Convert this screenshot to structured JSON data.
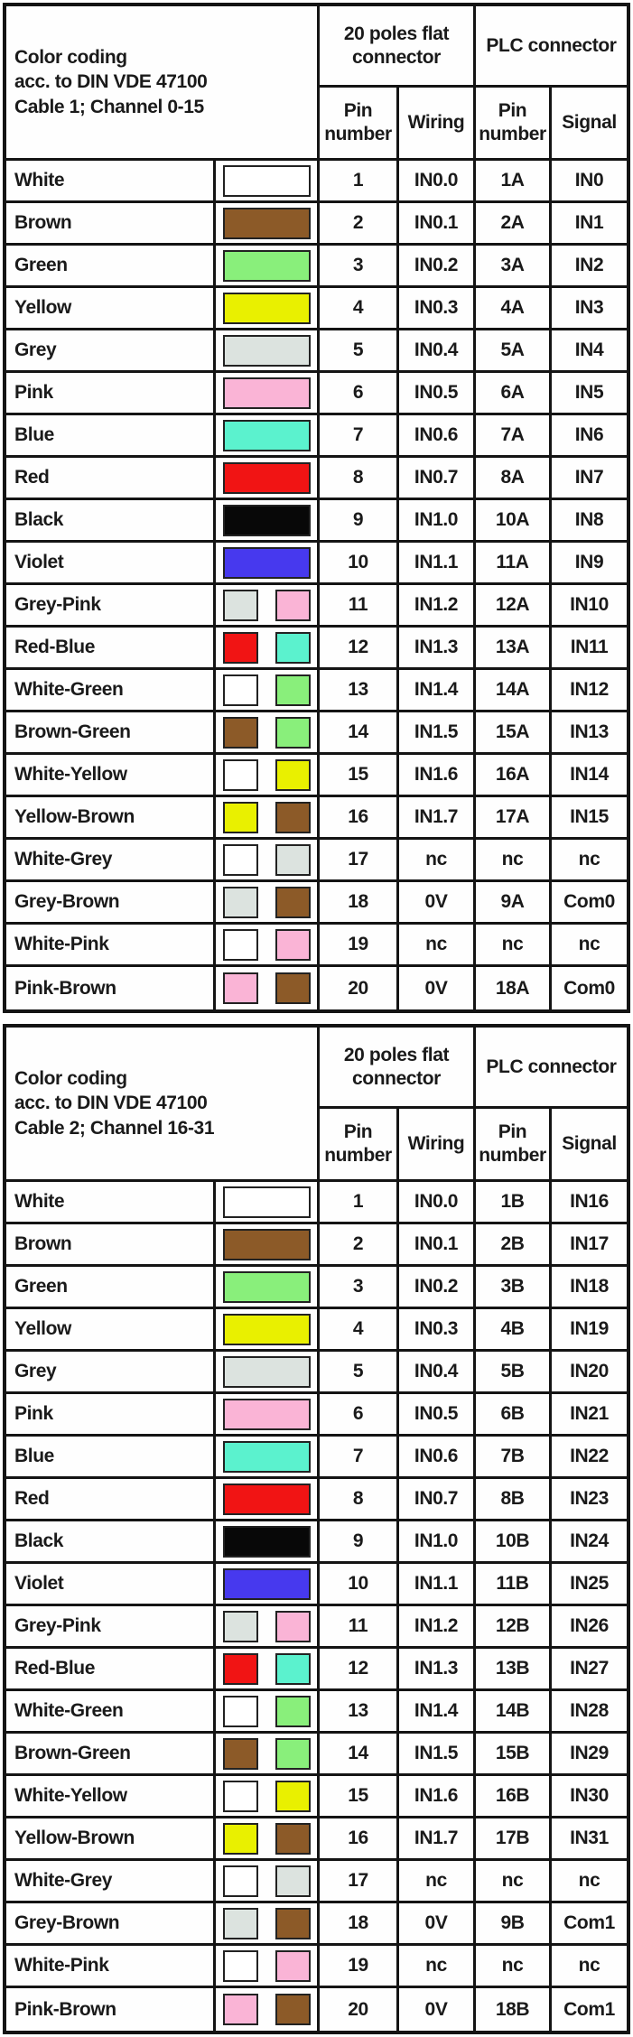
{
  "page": {
    "background": "#ffffff",
    "line_color": "#141414",
    "text_color": "#1a1a1a"
  },
  "color_map": {
    "white": "#FFFFFF",
    "brown": "#8C5A28",
    "green": "#89EF7B",
    "yellow": "#E9F000",
    "grey": "#DCE3DF",
    "pink": "#FAB4D6",
    "blue": "#5BF2CE",
    "red": "#F11414",
    "black": "#080808",
    "violet": "#4739EE"
  },
  "tables": [
    {
      "title_lines": [
        "Color coding",
        "acc. to DIN VDE 47100",
        "Cable 1; Channel 0-15"
      ],
      "groups": {
        "flat": "20 poles flat connector",
        "plc": "PLC connector"
      },
      "columns": {
        "pin": "Pin number",
        "wiring": "Wiring",
        "plc_pin": "Pin number",
        "signal": "Signal"
      },
      "rows": [
        {
          "color": "White",
          "swatches": [
            "white"
          ],
          "pin": "1",
          "wiring": "IN0.0",
          "plc_pin": "1A",
          "signal": "IN0"
        },
        {
          "color": "Brown",
          "swatches": [
            "brown"
          ],
          "pin": "2",
          "wiring": "IN0.1",
          "plc_pin": "2A",
          "signal": "IN1"
        },
        {
          "color": "Green",
          "swatches": [
            "green"
          ],
          "pin": "3",
          "wiring": "IN0.2",
          "plc_pin": "3A",
          "signal": "IN2"
        },
        {
          "color": "Yellow",
          "swatches": [
            "yellow"
          ],
          "pin": "4",
          "wiring": "IN0.3",
          "plc_pin": "4A",
          "signal": "IN3"
        },
        {
          "color": "Grey",
          "swatches": [
            "grey"
          ],
          "pin": "5",
          "wiring": "IN0.4",
          "plc_pin": "5A",
          "signal": "IN4"
        },
        {
          "color": "Pink",
          "swatches": [
            "pink"
          ],
          "pin": "6",
          "wiring": "IN0.5",
          "plc_pin": "6A",
          "signal": "IN5"
        },
        {
          "color": "Blue",
          "swatches": [
            "blue"
          ],
          "pin": "7",
          "wiring": "IN0.6",
          "plc_pin": "7A",
          "signal": "IN6"
        },
        {
          "color": "Red",
          "swatches": [
            "red"
          ],
          "pin": "8",
          "wiring": "IN0.7",
          "plc_pin": "8A",
          "signal": "IN7"
        },
        {
          "color": "Black",
          "swatches": [
            "black"
          ],
          "pin": "9",
          "wiring": "IN1.0",
          "plc_pin": "10A",
          "signal": "IN8"
        },
        {
          "color": "Violet",
          "swatches": [
            "violet"
          ],
          "pin": "10",
          "wiring": "IN1.1",
          "plc_pin": "11A",
          "signal": "IN9"
        },
        {
          "color": "Grey-Pink",
          "swatches": [
            "grey",
            "pink"
          ],
          "pin": "11",
          "wiring": "IN1.2",
          "plc_pin": "12A",
          "signal": "IN10"
        },
        {
          "color": "Red-Blue",
          "swatches": [
            "red",
            "blue"
          ],
          "pin": "12",
          "wiring": "IN1.3",
          "plc_pin": "13A",
          "signal": "IN11"
        },
        {
          "color": "White-Green",
          "swatches": [
            "white",
            "green"
          ],
          "pin": "13",
          "wiring": "IN1.4",
          "plc_pin": "14A",
          "signal": "IN12"
        },
        {
          "color": "Brown-Green",
          "swatches": [
            "brown",
            "green"
          ],
          "pin": "14",
          "wiring": "IN1.5",
          "plc_pin": "15A",
          "signal": "IN13"
        },
        {
          "color": "White-Yellow",
          "swatches": [
            "white",
            "yellow"
          ],
          "pin": "15",
          "wiring": "IN1.6",
          "plc_pin": "16A",
          "signal": "IN14"
        },
        {
          "color": "Yellow-Brown",
          "swatches": [
            "yellow",
            "brown"
          ],
          "pin": "16",
          "wiring": "IN1.7",
          "plc_pin": "17A",
          "signal": "IN15"
        },
        {
          "color": "White-Grey",
          "swatches": [
            "white",
            "grey"
          ],
          "pin": "17",
          "wiring": "nc",
          "plc_pin": "nc",
          "signal": "nc"
        },
        {
          "color": "Grey-Brown",
          "swatches": [
            "grey",
            "brown"
          ],
          "pin": "18",
          "wiring": "0V",
          "plc_pin": "9A",
          "signal": "Com0"
        },
        {
          "color": "White-Pink",
          "swatches": [
            "white",
            "pink"
          ],
          "pin": "19",
          "wiring": "nc",
          "plc_pin": "nc",
          "signal": "nc"
        },
        {
          "color": "Pink-Brown",
          "swatches": [
            "pink",
            "brown"
          ],
          "pin": "20",
          "wiring": "0V",
          "plc_pin": "18A",
          "signal": "Com0"
        }
      ]
    },
    {
      "title_lines": [
        "Color coding",
        "acc. to DIN VDE 47100",
        "Cable 2; Channel 16-31"
      ],
      "groups": {
        "flat": "20 poles flat connector",
        "plc": "PLC connector"
      },
      "columns": {
        "pin": "Pin number",
        "wiring": "Wiring",
        "plc_pin": "Pin number",
        "signal": "Signal"
      },
      "rows": [
        {
          "color": "White",
          "swatches": [
            "white"
          ],
          "pin": "1",
          "wiring": "IN0.0",
          "plc_pin": "1B",
          "signal": "IN16"
        },
        {
          "color": "Brown",
          "swatches": [
            "brown"
          ],
          "pin": "2",
          "wiring": "IN0.1",
          "plc_pin": "2B",
          "signal": "IN17"
        },
        {
          "color": "Green",
          "swatches": [
            "green"
          ],
          "pin": "3",
          "wiring": "IN0.2",
          "plc_pin": "3B",
          "signal": "IN18"
        },
        {
          "color": "Yellow",
          "swatches": [
            "yellow"
          ],
          "pin": "4",
          "wiring": "IN0.3",
          "plc_pin": "4B",
          "signal": "IN19"
        },
        {
          "color": "Grey",
          "swatches": [
            "grey"
          ],
          "pin": "5",
          "wiring": "IN0.4",
          "plc_pin": "5B",
          "signal": "IN20"
        },
        {
          "color": "Pink",
          "swatches": [
            "pink"
          ],
          "pin": "6",
          "wiring": "IN0.5",
          "plc_pin": "6B",
          "signal": "IN21"
        },
        {
          "color": "Blue",
          "swatches": [
            "blue"
          ],
          "pin": "7",
          "wiring": "IN0.6",
          "plc_pin": "7B",
          "signal": "IN22"
        },
        {
          "color": "Red",
          "swatches": [
            "red"
          ],
          "pin": "8",
          "wiring": "IN0.7",
          "plc_pin": "8B",
          "signal": "IN23"
        },
        {
          "color": "Black",
          "swatches": [
            "black"
          ],
          "pin": "9",
          "wiring": "IN1.0",
          "plc_pin": "10B",
          "signal": "IN24"
        },
        {
          "color": "Violet",
          "swatches": [
            "violet"
          ],
          "pin": "10",
          "wiring": "IN1.1",
          "plc_pin": "11B",
          "signal": "IN25"
        },
        {
          "color": "Grey-Pink",
          "swatches": [
            "grey",
            "pink"
          ],
          "pin": "11",
          "wiring": "IN1.2",
          "plc_pin": "12B",
          "signal": "IN26"
        },
        {
          "color": "Red-Blue",
          "swatches": [
            "red",
            "blue"
          ],
          "pin": "12",
          "wiring": "IN1.3",
          "plc_pin": "13B",
          "signal": "IN27"
        },
        {
          "color": "White-Green",
          "swatches": [
            "white",
            "green"
          ],
          "pin": "13",
          "wiring": "IN1.4",
          "plc_pin": "14B",
          "signal": "IN28"
        },
        {
          "color": "Brown-Green",
          "swatches": [
            "brown",
            "green"
          ],
          "pin": "14",
          "wiring": "IN1.5",
          "plc_pin": "15B",
          "signal": "IN29"
        },
        {
          "color": "White-Yellow",
          "swatches": [
            "white",
            "yellow"
          ],
          "pin": "15",
          "wiring": "IN1.6",
          "plc_pin": "16B",
          "signal": "IN30"
        },
        {
          "color": "Yellow-Brown",
          "swatches": [
            "yellow",
            "brown"
          ],
          "pin": "16",
          "wiring": "IN1.7",
          "plc_pin": "17B",
          "signal": "IN31"
        },
        {
          "color": "White-Grey",
          "swatches": [
            "white",
            "grey"
          ],
          "pin": "17",
          "wiring": "nc",
          "plc_pin": "nc",
          "signal": "nc"
        },
        {
          "color": "Grey-Brown",
          "swatches": [
            "grey",
            "brown"
          ],
          "pin": "18",
          "wiring": "0V",
          "plc_pin": "9B",
          "signal": "Com1"
        },
        {
          "color": "White-Pink",
          "swatches": [
            "white",
            "pink"
          ],
          "pin": "19",
          "wiring": "nc",
          "plc_pin": "nc",
          "signal": "nc"
        },
        {
          "color": "Pink-Brown",
          "swatches": [
            "pink",
            "brown"
          ],
          "pin": "20",
          "wiring": "0V",
          "plc_pin": "18B",
          "signal": "Com1"
        }
      ]
    }
  ]
}
